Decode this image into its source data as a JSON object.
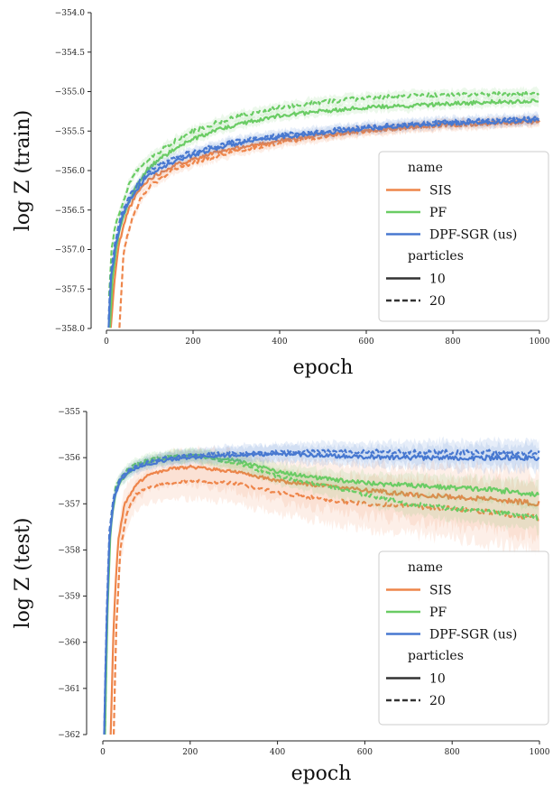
{
  "chart_data": [
    {
      "type": "line",
      "xlabel": "epoch",
      "ylabel": "log Z (train)",
      "xlim": [
        0,
        1000
      ],
      "ylim": [
        -358.0,
        -354.0
      ],
      "xticks": [
        0,
        200,
        400,
        600,
        800,
        1000
      ],
      "yticks": [
        -358.0,
        -357.5,
        -357.0,
        -356.5,
        -356.0,
        -355.5,
        -355.0,
        -354.5,
        -354.0
      ],
      "ytick_labels": [
        "−358.0",
        "−357.5",
        "−357.0",
        "−356.5",
        "−356.0",
        "−355.5",
        "−355.0",
        "−354.5",
        "−354.0"
      ],
      "legend": {
        "placement": "lower-right",
        "title_name": "name",
        "title_particles": "particles",
        "particles": [
          "10",
          "20"
        ]
      },
      "series": [
        {
          "name": "SIS",
          "particles": "10",
          "color": "#ee854a",
          "dash": false,
          "x": [
            10,
            20,
            30,
            50,
            75,
            100,
            150,
            200,
            250,
            300,
            400,
            500,
            600,
            700,
            800,
            900,
            1000
          ],
          "values": [
            -358.0,
            -357.3,
            -356.9,
            -356.5,
            -356.25,
            -356.1,
            -355.95,
            -355.85,
            -355.78,
            -355.72,
            -355.62,
            -355.55,
            -355.5,
            -355.45,
            -355.42,
            -355.4,
            -355.38
          ]
        },
        {
          "name": "SIS",
          "particles": "20",
          "color": "#ee854a",
          "dash": true,
          "x": [
            30,
            40,
            60,
            80,
            100,
            150,
            200,
            250,
            300,
            400,
            500,
            600,
            700,
            800,
            900,
            1000
          ],
          "values": [
            -358.0,
            -357.0,
            -356.6,
            -356.35,
            -356.2,
            -356.0,
            -355.9,
            -355.82,
            -355.75,
            -355.65,
            -355.57,
            -355.5,
            -355.45,
            -355.42,
            -355.4,
            -355.37
          ]
        },
        {
          "name": "PF",
          "particles": "10",
          "color": "#6acc64",
          "dash": false,
          "x": [
            8,
            15,
            25,
            40,
            60,
            80,
            100,
            150,
            200,
            250,
            300,
            400,
            500,
            600,
            700,
            800,
            900,
            1000
          ],
          "values": [
            -358.0,
            -357.3,
            -356.9,
            -356.55,
            -356.3,
            -356.1,
            -355.95,
            -355.75,
            -355.6,
            -355.5,
            -355.42,
            -355.3,
            -355.25,
            -355.2,
            -355.18,
            -355.15,
            -355.13,
            -355.12
          ]
        },
        {
          "name": "PF",
          "particles": "20",
          "color": "#6acc64",
          "dash": true,
          "x": [
            6,
            12,
            20,
            35,
            50,
            70,
            100,
            150,
            200,
            250,
            300,
            400,
            500,
            600,
            700,
            800,
            900,
            1000
          ],
          "values": [
            -357.6,
            -357.0,
            -356.7,
            -356.45,
            -356.2,
            -356.0,
            -355.85,
            -355.65,
            -355.5,
            -355.4,
            -355.32,
            -355.2,
            -355.13,
            -355.08,
            -355.05,
            -355.04,
            -355.03,
            -355.02
          ]
        },
        {
          "name": "DPF-SGR (us)",
          "particles": "10",
          "color": "#4878d0",
          "dash": false,
          "x": [
            5,
            10,
            20,
            35,
            50,
            75,
            100,
            150,
            200,
            250,
            300,
            400,
            500,
            600,
            700,
            800,
            900,
            1000
          ],
          "values": [
            -358.0,
            -357.4,
            -357.0,
            -356.6,
            -356.4,
            -356.2,
            -356.05,
            -355.9,
            -355.8,
            -355.72,
            -355.66,
            -355.58,
            -355.52,
            -355.47,
            -355.43,
            -355.4,
            -355.38,
            -355.36
          ]
        },
        {
          "name": "DPF-SGR (us)",
          "particles": "20",
          "color": "#4878d0",
          "dash": true,
          "x": [
            5,
            10,
            20,
            35,
            50,
            75,
            100,
            150,
            200,
            250,
            300,
            400,
            500,
            600,
            700,
            800,
            900,
            1000
          ],
          "values": [
            -357.9,
            -357.3,
            -356.9,
            -356.55,
            -356.35,
            -356.15,
            -356.0,
            -355.85,
            -355.76,
            -355.69,
            -355.63,
            -355.55,
            -355.5,
            -355.45,
            -355.41,
            -355.38,
            -355.36,
            -355.34
          ]
        }
      ]
    },
    {
      "type": "line",
      "xlabel": "epoch",
      "ylabel": "log Z (test)",
      "xlim": [
        0,
        1000
      ],
      "ylim": [
        -362,
        -355
      ],
      "xticks": [
        0,
        200,
        400,
        600,
        800,
        1000
      ],
      "yticks": [
        -362,
        -361,
        -360,
        -359,
        -358,
        -357,
        -356,
        -355
      ],
      "ytick_labels": [
        "−362",
        "−361",
        "−360",
        "−359",
        "−358",
        "−357",
        "−356",
        "−355"
      ],
      "legend": {
        "placement": "lower-right",
        "title_name": "name",
        "title_particles": "particles",
        "particles": [
          "10",
          "20"
        ]
      },
      "series": [
        {
          "name": "SIS",
          "particles": "10",
          "color": "#ee854a",
          "dash": false,
          "x": [
            18,
            25,
            35,
            50,
            75,
            100,
            150,
            200,
            300,
            400,
            500,
            600,
            700,
            800,
            900,
            1000
          ],
          "values": [
            -362.0,
            -359.5,
            -357.8,
            -357.0,
            -356.6,
            -356.4,
            -356.25,
            -356.2,
            -356.3,
            -356.5,
            -356.6,
            -356.7,
            -356.8,
            -356.85,
            -356.9,
            -357.0
          ]
        },
        {
          "name": "SIS",
          "particles": "20",
          "color": "#ee854a",
          "dash": true,
          "x": [
            25,
            30,
            40,
            55,
            75,
            100,
            150,
            200,
            300,
            400,
            500,
            600,
            700,
            800,
            900,
            1000
          ],
          "values": [
            -362.0,
            -359.8,
            -358.0,
            -357.2,
            -356.8,
            -356.65,
            -356.55,
            -356.5,
            -356.55,
            -356.75,
            -356.9,
            -357.0,
            -357.05,
            -357.1,
            -357.2,
            -357.3
          ]
        },
        {
          "name": "PF",
          "particles": "10",
          "color": "#6acc64",
          "dash": false,
          "x": [
            5,
            10,
            18,
            30,
            50,
            75,
            100,
            150,
            200,
            300,
            400,
            500,
            600,
            700,
            800,
            900,
            1000
          ],
          "values": [
            -362.0,
            -359.5,
            -357.5,
            -356.7,
            -356.4,
            -356.2,
            -356.1,
            -356.0,
            -355.95,
            -356.05,
            -356.3,
            -356.45,
            -356.55,
            -356.6,
            -356.65,
            -356.7,
            -356.8
          ]
        },
        {
          "name": "PF",
          "particles": "20",
          "color": "#6acc64",
          "dash": true,
          "x": [
            5,
            10,
            18,
            30,
            50,
            75,
            100,
            150,
            200,
            300,
            400,
            500,
            600,
            700,
            800,
            900,
            1000
          ],
          "values": [
            -362.0,
            -359.3,
            -357.3,
            -356.6,
            -356.3,
            -356.15,
            -356.05,
            -355.98,
            -355.95,
            -356.1,
            -356.4,
            -356.6,
            -356.8,
            -357.0,
            -357.1,
            -357.2,
            -357.3
          ]
        },
        {
          "name": "DPF-SGR (us)",
          "particles": "10",
          "color": "#4878d0",
          "dash": false,
          "x": [
            3,
            8,
            15,
            25,
            40,
            60,
            100,
            150,
            200,
            300,
            400,
            500,
            600,
            700,
            800,
            900,
            1000
          ],
          "values": [
            -362.0,
            -359.8,
            -357.8,
            -356.9,
            -356.5,
            -356.3,
            -356.15,
            -356.05,
            -356.0,
            -355.95,
            -355.92,
            -355.95,
            -355.98,
            -356.0,
            -356.0,
            -356.0,
            -356.0
          ]
        },
        {
          "name": "DPF-SGR (us)",
          "particles": "20",
          "color": "#4878d0",
          "dash": true,
          "x": [
            3,
            8,
            15,
            25,
            40,
            60,
            100,
            150,
            200,
            300,
            400,
            500,
            600,
            700,
            800,
            900,
            1000
          ],
          "values": [
            -362.0,
            -359.6,
            -357.6,
            -356.8,
            -356.45,
            -356.25,
            -356.1,
            -356.0,
            -355.95,
            -355.9,
            -355.88,
            -355.87,
            -355.87,
            -355.88,
            -355.88,
            -355.89,
            -355.9
          ]
        }
      ]
    }
  ]
}
